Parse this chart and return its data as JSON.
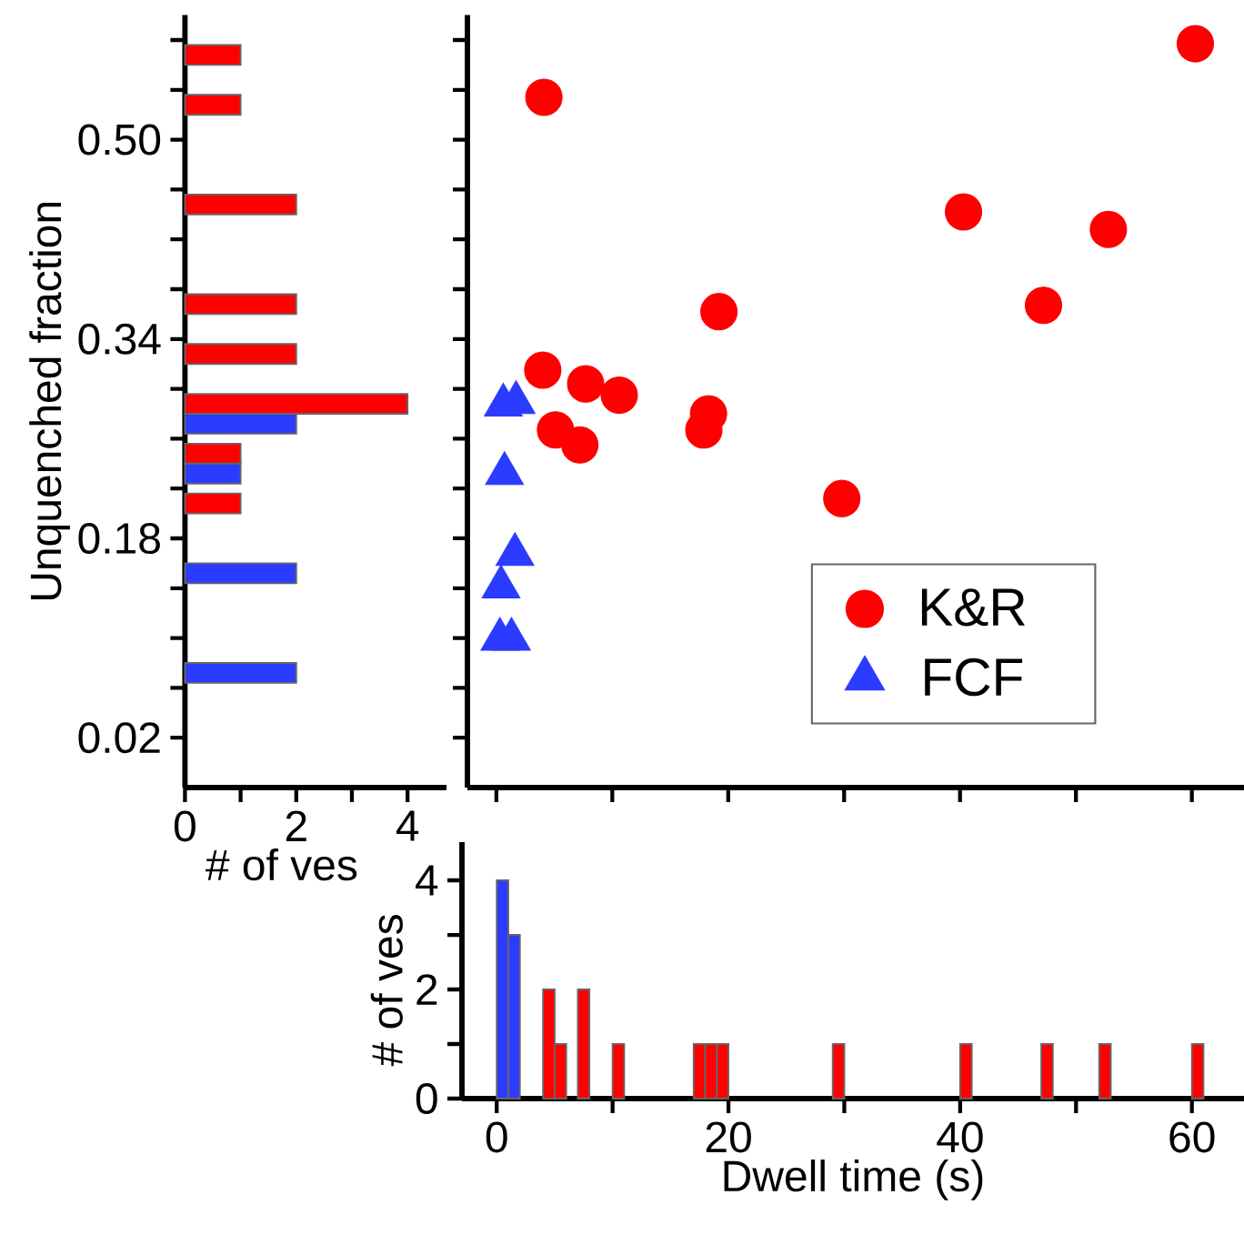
{
  "chart_data": [
    {
      "type": "histogram",
      "orientation": "horizontal",
      "xlabel": "# of ves",
      "ylabel": "Unquenched fraction",
      "legend": false,
      "bins": [
        0.02,
        0.06,
        0.1,
        0.14,
        0.18,
        0.22,
        0.26,
        0.3,
        0.34,
        0.38,
        0.42,
        0.46,
        0.5,
        0.54,
        0.58
      ],
      "series": [
        {
          "color": "#ff0000",
          "values": [
            0,
            0,
            0,
            0,
            1,
            1,
            4,
            2,
            2,
            0,
            2,
            0,
            1,
            1
          ]
        },
        {
          "color": "#2b3bff",
          "values": [
            0,
            2,
            0,
            2,
            0,
            1,
            2,
            0,
            0,
            0,
            0,
            0,
            0,
            0
          ]
        }
      ],
      "xlim": [
        0,
        4.7
      ],
      "xticks": [
        0,
        {
          "value": 1,
          "label": null
        },
        2,
        {
          "value": 3,
          "label": null
        },
        4
      ],
      "ylim": [
        -0.02,
        0.6
      ],
      "yticks": [
        0.02,
        {
          "value": 0.06,
          "label": null
        },
        {
          "value": 0.1,
          "label": null
        },
        {
          "value": 0.14,
          "label": null
        },
        0.18,
        {
          "value": 0.22,
          "label": null
        },
        {
          "value": 0.26,
          "label": null
        },
        {
          "value": 0.3,
          "label": null
        },
        0.34,
        {
          "value": 0.38,
          "label": null
        },
        {
          "value": 0.42,
          "label": null
        },
        {
          "value": 0.46,
          "label": null
        },
        {
          "value": 0.5,
          "label": "0.50"
        },
        {
          "value": 0.54,
          "label": null
        },
        {
          "value": 0.58,
          "label": null
        }
      ]
    },
    {
      "type": "scatter",
      "legend": "bottom right",
      "tick_labels": false,
      "series": [
        {
          "name": "K&R",
          "color": "#ff0000",
          "marker": "circle",
          "x": [
            4.1,
            60.3,
            40.3,
            52.8,
            47.2,
            19.2,
            4.0,
            7.7,
            10.6,
            18.3,
            17.9,
            5.1,
            7.2,
            29.8
          ],
          "values": [
            0.534,
            0.577,
            0.442,
            0.428,
            0.367,
            0.362,
            0.315,
            0.304,
            0.295,
            0.28,
            0.267,
            0.267,
            0.255,
            0.212
          ]
        },
        {
          "name": "FCF",
          "color": "#2b3bff",
          "marker": "triangle",
          "x": [
            0.6,
            1.7,
            0.7,
            1.6,
            0.4,
            0.3,
            1.3
          ],
          "values": [
            0.287,
            0.289,
            0.232,
            0.167,
            0.141,
            0.099,
            0.099
          ]
        }
      ],
      "xlim": [
        -2.5,
        64.5
      ],
      "xticks": [
        0,
        10,
        20,
        30,
        40,
        50,
        60
      ],
      "ylim": [
        -0.02,
        0.6
      ],
      "yticks": [
        0.02,
        0.06,
        0.1,
        0.14,
        0.18,
        0.22,
        0.26,
        0.3,
        0.34,
        0.38,
        0.42,
        0.46,
        0.5,
        0.54,
        0.58
      ]
    },
    {
      "type": "histogram",
      "xlabel": "Dwell time (s)",
      "ylabel": "# of ves",
      "legend": false,
      "bins": [
        0,
        1,
        2,
        3,
        4,
        5,
        6,
        7,
        8,
        9,
        10,
        11,
        12,
        13,
        14,
        15,
        16,
        17,
        18,
        19,
        20,
        21,
        22,
        23,
        24,
        25,
        26,
        27,
        28,
        29,
        30,
        31,
        32,
        33,
        34,
        35,
        36,
        37,
        38,
        39,
        40,
        41,
        42,
        43,
        44,
        45,
        46,
        47,
        48,
        49,
        50,
        51,
        52,
        53,
        54,
        55,
        56,
        57,
        58,
        59,
        60,
        61
      ],
      "series": [
        {
          "color": "#ff0000",
          "values": [
            0,
            0,
            0,
            0,
            2,
            1,
            0,
            2,
            0,
            0,
            1,
            0,
            0,
            0,
            0,
            0,
            0,
            1,
            1,
            1,
            0,
            0,
            0,
            0,
            0,
            0,
            0,
            0,
            0,
            1,
            0,
            0,
            0,
            0,
            0,
            0,
            0,
            0,
            0,
            0,
            1,
            0,
            0,
            0,
            0,
            0,
            0,
            1,
            0,
            0,
            0,
            0,
            1,
            0,
            0,
            0,
            0,
            0,
            0,
            0,
            1
          ]
        },
        {
          "color": "#2b3bff",
          "values": [
            4,
            3,
            0,
            0,
            0,
            0,
            0,
            0,
            0,
            0,
            0,
            0,
            0,
            0,
            0,
            0,
            0,
            0,
            0,
            0,
            0,
            0,
            0,
            0,
            0,
            0,
            0,
            0,
            0,
            0,
            0,
            0,
            0,
            0,
            0,
            0,
            0,
            0,
            0,
            0,
            0,
            0,
            0,
            0,
            0,
            0,
            0,
            0,
            0,
            0,
            0,
            0,
            0,
            0,
            0,
            0,
            0,
            0,
            0,
            0,
            0
          ]
        }
      ],
      "xlim": [
        -3,
        64.5
      ],
      "xticks": [
        0,
        {
          "value": 10,
          "label": null
        },
        20,
        {
          "value": 30,
          "label": null
        },
        40,
        {
          "value": 50,
          "label": null
        },
        60
      ],
      "ylim": [
        0,
        4.7
      ],
      "yticks": [
        0,
        {
          "value": 1,
          "label": null
        },
        2,
        {
          "value": 3,
          "label": null
        },
        4
      ]
    }
  ]
}
